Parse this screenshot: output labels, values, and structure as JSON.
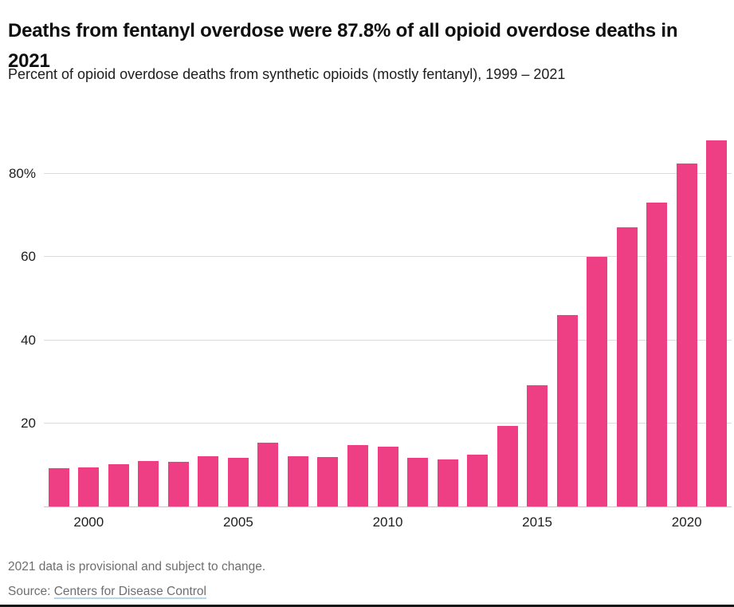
{
  "header": {
    "title": "Deaths from fentanyl overdose were 87.8% of all opioid overdose deaths in 2021",
    "subtitle": "Percent of opioid overdose deaths from synthetic opioids (mostly fentanyl), 1999 – 2021"
  },
  "chart_data": {
    "type": "bar",
    "title": "Deaths from fentanyl overdose were 87.8% of all opioid overdose deaths in 2021",
    "subtitle": "Percent of opioid overdose deaths from synthetic opioids (mostly fentanyl), 1999 – 2021",
    "x": [
      1999,
      2000,
      2001,
      2002,
      2003,
      2004,
      2005,
      2006,
      2007,
      2008,
      2009,
      2010,
      2011,
      2012,
      2013,
      2014,
      2015,
      2016,
      2017,
      2018,
      2019,
      2020,
      2021
    ],
    "values": [
      9.1,
      9.3,
      10.1,
      10.9,
      10.8,
      12.1,
      11.7,
      15.4,
      12.0,
      11.8,
      14.7,
      14.3,
      11.7,
      11.3,
      12.4,
      19.4,
      29.0,
      46.0,
      59.8,
      67.0,
      72.9,
      82.3,
      87.8
    ],
    "xlabel": "",
    "ylabel": "",
    "ylim": [
      0,
      92
    ],
    "yticks": [
      {
        "value": 20,
        "label": "20"
      },
      {
        "value": 40,
        "label": "40"
      },
      {
        "value": 60,
        "label": "60"
      },
      {
        "value": 80,
        "label": "80%"
      }
    ],
    "xticks": [
      2000,
      2005,
      2010,
      2015,
      2020
    ],
    "bar_color": "#EE3F85",
    "grid": "horizontal",
    "legend_position": "none"
  },
  "footer": {
    "note": "2021 data is provisional and subject to change.",
    "source_prefix": "Source: ",
    "source_link": "Centers for Disease Control"
  }
}
